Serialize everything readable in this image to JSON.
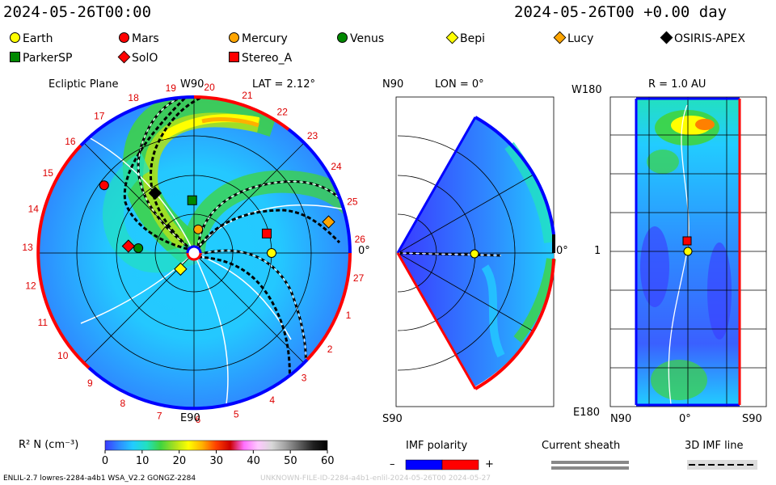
{
  "header": {
    "left_time": "2024-05-26T00:00",
    "right_time": "2024-05-26T00 +0.00 day"
  },
  "legend": [
    {
      "name": "Earth",
      "color": "#ffff00",
      "shape": "circle"
    },
    {
      "name": "Mars",
      "color": "#ff0000",
      "shape": "circle"
    },
    {
      "name": "Mercury",
      "color": "#ffa500",
      "shape": "circle"
    },
    {
      "name": "Venus",
      "color": "#008800",
      "shape": "circle"
    },
    {
      "name": "Bepi",
      "color": "#ffff00",
      "shape": "diamond"
    },
    {
      "name": "Lucy",
      "color": "#ffa500",
      "shape": "diamond"
    },
    {
      "name": "OSIRIS-APEX",
      "color": "#000000",
      "shape": "diamond"
    },
    {
      "name": "ParkerSP",
      "color": "#008800",
      "shape": "square"
    },
    {
      "name": "SolO",
      "color": "#ff0000",
      "shape": "diamond"
    },
    {
      "name": "Stereo_A",
      "color": "#ff0000",
      "shape": "square"
    }
  ],
  "panels": {
    "ecliptic": {
      "title": "Ecliptic Plane",
      "lat": "LAT = 2.12°",
      "top": "W90",
      "bottom": "E90",
      "right": "0°",
      "carrington": [
        "19",
        "20",
        "21",
        "22",
        "23",
        "24",
        "25",
        "26",
        "27",
        "1",
        "2",
        "3",
        "4",
        "5",
        "6",
        "7",
        "8",
        "9",
        "10",
        "11",
        "12",
        "13",
        "14",
        "15",
        "16",
        "17",
        "18"
      ]
    },
    "meridional": {
      "top": "N90",
      "lon": "LON = 0°",
      "bottom": "S90",
      "right": "0°"
    },
    "radial": {
      "top": "R = 1.0 AU",
      "tl": "W180",
      "mid": "1",
      "bl": "E180",
      "x_left": "N90",
      "x_mid": "0°",
      "x_right": "S90"
    }
  },
  "colorbar": {
    "label": "R² N (cm⁻³)",
    "ticks": [
      "0",
      "10",
      "20",
      "30",
      "40",
      "50",
      "60"
    ],
    "stops": [
      "#3a3aff",
      "#2e8bff",
      "#22ccff",
      "#22e0c0",
      "#3fd43f",
      "#a8e020",
      "#ffff00",
      "#ffb000",
      "#ff4000",
      "#cc0000",
      "#ff70ff",
      "#ffc8ff",
      "#d8d8d8",
      "#a0a0a0",
      "#606060",
      "#202020",
      "#000000"
    ]
  },
  "bottom_legends": {
    "imf": "IMF polarity",
    "minus": "–",
    "plus": "+",
    "sheath": "Current sheath",
    "line3d": "3D IMF line"
  },
  "footer": {
    "left": "ENLIL-2.7 lowres-2284-a4b1 WSA_V2.2 GONGZ-2284",
    "right": "UNKNOWN-FILE-ID-2284-a4b1-enlil-2024-05-26T00   2024-05-27"
  },
  "chart_data": [
    {
      "type": "heatmap",
      "title": "Ecliptic Plane density (R² N)",
      "spacecraft": [
        {
          "name": "Earth",
          "r_au": 1.0,
          "lon_deg": 0
        },
        {
          "name": "Mars",
          "r_au": 1.45,
          "lon_deg": 143
        },
        {
          "name": "Mercury",
          "r_au": 0.31,
          "lon_deg": 80
        },
        {
          "name": "Venus",
          "r_au": 0.72,
          "lon_deg": 175
        },
        {
          "name": "Bepi",
          "r_au": 0.27,
          "lon_deg": -130
        },
        {
          "name": "Lucy",
          "r_au": 1.78,
          "lon_deg": 13
        },
        {
          "name": "OSIRIS-APEX",
          "r_au": 0.92,
          "lon_deg": 123
        },
        {
          "name": "ParkerSP",
          "r_au": 0.68,
          "lon_deg": 92
        },
        {
          "name": "SolO",
          "r_au": 0.85,
          "lon_deg": 174
        },
        {
          "name": "Stereo_A",
          "r_au": 0.97,
          "lon_deg": 15
        }
      ]
    },
    {
      "type": "heatmap",
      "title": "Meridional plane LON = 0°",
      "spacecraft": [
        {
          "name": "Earth",
          "r_au": 1.0,
          "lat_deg": 0
        }
      ]
    },
    {
      "type": "heatmap",
      "title": "Radial shell R = 1.0 AU",
      "spacecraft": [
        {
          "name": "Earth",
          "lat_deg": 0,
          "lon_deg": 0
        },
        {
          "name": "Stereo_A",
          "lat_deg": 0,
          "lon_deg": 15
        }
      ]
    }
  ]
}
